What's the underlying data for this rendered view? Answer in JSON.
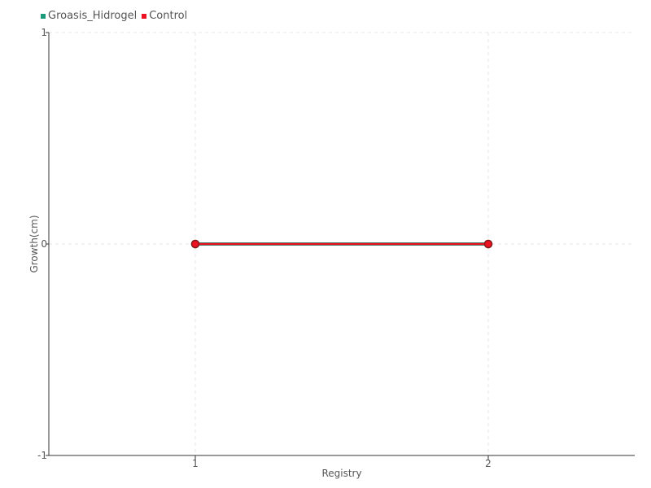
{
  "chart_data": {
    "type": "line",
    "title": "",
    "xlabel": "Registry",
    "ylabel": "Growth(cm)",
    "categories": [
      "1",
      "2"
    ],
    "x": [
      1,
      2
    ],
    "xlim": [
      0.5,
      2.5
    ],
    "ylim": [
      -1,
      1
    ],
    "yticks": [
      "-1",
      "0",
      "1"
    ],
    "grid": true,
    "legend_position": "top-left",
    "series": [
      {
        "name": "Groasis_Hidrogel",
        "values": [
          0,
          0
        ],
        "color": "#1a9a7a"
      },
      {
        "name": "Control",
        "values": [
          0,
          0
        ],
        "color": "#ee1122"
      }
    ]
  }
}
